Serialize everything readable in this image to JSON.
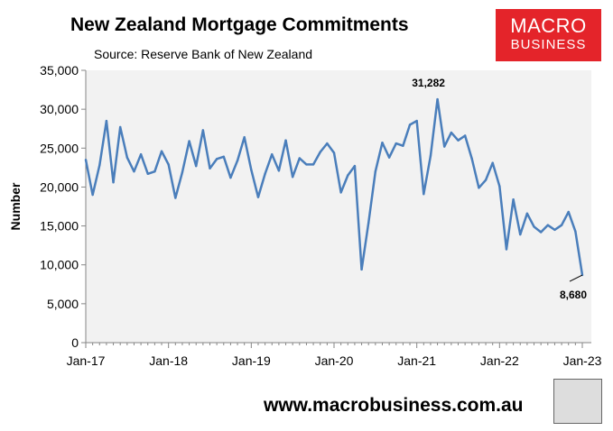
{
  "chart_data": {
    "type": "line",
    "title": "New Zealand Mortgage Commitments",
    "subtitle": "Source: Reserve Bank of New Zealand",
    "xlabel": "",
    "ylabel": "Number",
    "ylim": [
      0,
      35000
    ],
    "yticks": [
      "0",
      "5,000",
      "10,000",
      "15,000",
      "20,000",
      "25,000",
      "30,000",
      "35,000"
    ],
    "xticks": [
      "Jan-17",
      "Jan-18",
      "Jan-19",
      "Jan-20",
      "Jan-21",
      "Jan-22",
      "Jan-23"
    ],
    "x_start": "Jan-17",
    "x_end": "Jan-23",
    "frequency": "monthly",
    "grid": false,
    "line_color": "#4a7ebb",
    "values": [
      23500,
      19000,
      22800,
      28500,
      20600,
      27700,
      23800,
      22000,
      24200,
      21700,
      22000,
      24600,
      22900,
      18600,
      21900,
      25900,
      22700,
      27300,
      22400,
      23600,
      23900,
      21200,
      23400,
      26400,
      22200,
      18700,
      21700,
      24200,
      22100,
      26000,
      21300,
      23700,
      22900,
      22900,
      24500,
      25600,
      24400,
      19300,
      21500,
      22700,
      9400,
      15400,
      22000,
      25700,
      23800,
      25600,
      25300,
      28000,
      28500,
      19100,
      24000,
      31282,
      25200,
      27000,
      26000,
      26600,
      23600,
      19900,
      20900,
      23100,
      20100,
      12000,
      18400,
      13900,
      16600,
      14900,
      14200,
      15100,
      14500,
      15100,
      16800,
      14300,
      8680
    ],
    "annotations": [
      {
        "label": "31,282",
        "value": 31282
      },
      {
        "label": "8,680",
        "value": 8680
      }
    ]
  },
  "branding": {
    "logo_line1": "MACRO",
    "logo_line2": "BUSINESS",
    "url": "www.macrobusiness.com.au",
    "brand_color": "#e4242a"
  }
}
